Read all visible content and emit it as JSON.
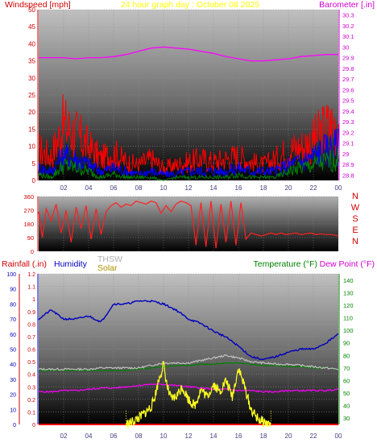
{
  "colors": {
    "windspeed": "#ff0000",
    "barometer": "#ff00ff",
    "title": "#ffff00",
    "humidity": "#0000c0",
    "thsw": "#c0c0c0",
    "solar": "#c0a000",
    "temperature": "#008000",
    "dew_point": "#ff00ff",
    "rainfall": "#ff0000",
    "wind_dir": "#ff2020",
    "axis_red": "#d00000",
    "axis_blue": "#0000c0",
    "axis_green": "#008000",
    "plot_top": "#b8b8b8",
    "plot_bottom": "#000000"
  },
  "title": "24 hour graph day : October 08 2025",
  "chart_data": [
    {
      "type": "line",
      "title": "24 hour graph day : October 08 2025",
      "x_ticks": [
        "02",
        "04",
        "06",
        "08",
        "10",
        "12",
        "14",
        "16",
        "18",
        "20",
        "22",
        "00"
      ],
      "left_label": "Windspeed [mph]",
      "left_ticks": [
        "0",
        "5",
        "10",
        "15",
        "20",
        "25",
        "30",
        "35",
        "40",
        "45",
        "50"
      ],
      "left_range": [
        0,
        50
      ],
      "right_label": "Barometer [.in]",
      "right_ticks": [
        "28.8",
        "28.9",
        "29",
        "29.1",
        "29.2",
        "29.3",
        "29.4",
        "29.5",
        "29.6",
        "29.7",
        "29.8",
        "29.9",
        "30",
        "30.1",
        "30.2",
        "30.3"
      ],
      "right_range": [
        28.75,
        30.35
      ],
      "series": [
        {
          "name": "Barometer",
          "axis": "right",
          "x": [
            0,
            1,
            2,
            3,
            4,
            5,
            6,
            7,
            8,
            9,
            10,
            11,
            12,
            13,
            14,
            15,
            16,
            17,
            18,
            19,
            20,
            21,
            22,
            23,
            24
          ],
          "values": [
            29.9,
            29.9,
            29.9,
            29.89,
            29.9,
            29.9,
            29.91,
            29.93,
            29.96,
            29.99,
            30.0,
            29.99,
            29.98,
            29.96,
            29.94,
            29.91,
            29.89,
            29.87,
            29.87,
            29.88,
            29.89,
            29.91,
            29.92,
            29.93,
            29.93
          ]
        },
        {
          "name": "Wind gust",
          "axis": "left",
          "x": [
            0,
            1,
            2,
            3,
            4,
            5,
            6,
            7,
            8,
            9,
            10,
            11,
            12,
            13,
            14,
            15,
            16,
            17,
            18,
            19,
            20,
            21,
            22,
            23,
            24
          ],
          "values": [
            10,
            8,
            18,
            15,
            11,
            7,
            9,
            6,
            5,
            7,
            4,
            5,
            6,
            7,
            6,
            7,
            8,
            6,
            5,
            7,
            10,
            11,
            13,
            17,
            19
          ]
        },
        {
          "name": "Wind average",
          "axis": "left",
          "x": [
            0,
            1,
            2,
            3,
            4,
            5,
            6,
            7,
            8,
            9,
            10,
            11,
            12,
            13,
            14,
            15,
            16,
            17,
            18,
            19,
            20,
            21,
            22,
            23,
            24
          ],
          "values": [
            4,
            3,
            8,
            7,
            5,
            3,
            4,
            3,
            2,
            3,
            2,
            2,
            3,
            3,
            3,
            3,
            4,
            3,
            3,
            3,
            5,
            6,
            8,
            10,
            11
          ]
        },
        {
          "name": "Wind low",
          "axis": "left",
          "x": [
            0,
            1,
            2,
            3,
            4,
            5,
            6,
            7,
            8,
            9,
            10,
            11,
            12,
            13,
            14,
            15,
            16,
            17,
            18,
            19,
            20,
            21,
            22,
            23,
            24
          ],
          "values": [
            2,
            1,
            5,
            4,
            3,
            1,
            2,
            1,
            1,
            1,
            0,
            1,
            1,
            1,
            1,
            1,
            2,
            1,
            1,
            1,
            3,
            4,
            5,
            6,
            7
          ]
        }
      ]
    },
    {
      "type": "line",
      "x_ticks": [
        "02",
        "04",
        "06",
        "08",
        "10",
        "12",
        "14",
        "16",
        "18",
        "20",
        "22",
        "00"
      ],
      "left_ticks": [
        "0",
        "90",
        "180",
        "270",
        "360"
      ],
      "left_range": [
        0,
        360
      ],
      "right_labels": [
        "N",
        "W",
        "S",
        "E",
        "N"
      ],
      "series": [
        {
          "name": "Wind direction",
          "x": [
            0,
            0.3,
            0.6,
            1,
            1.4,
            1.8,
            2.2,
            2.6,
            3,
            3.4,
            3.8,
            4.2,
            4.6,
            5,
            5.4,
            5.8,
            6.2,
            6.6,
            7,
            7.4,
            7.8,
            8.2,
            8.6,
            9,
            9.4,
            9.8,
            10.2,
            10.6,
            11,
            11.4,
            11.8,
            12.2,
            12.6,
            13,
            13.4,
            13.8,
            14.2,
            14.6,
            15,
            15.4,
            15.8,
            16.2,
            16.6,
            17,
            17.4,
            17.8,
            18.2,
            18.6,
            19,
            19.4,
            19.8,
            20.2,
            20.6,
            21,
            21.4,
            21.8,
            22.2,
            22.6,
            23,
            23.4,
            23.8,
            24
          ],
          "values": [
            260,
            90,
            280,
            200,
            310,
            120,
            270,
            60,
            290,
            150,
            300,
            80,
            280,
            110,
            260,
            300,
            320,
            290,
            310,
            300,
            330,
            320,
            310,
            330,
            320,
            250,
            300,
            260,
            310,
            330,
            320,
            300,
            40,
            320,
            30,
            330,
            20,
            310,
            60,
            330,
            40,
            320,
            80,
            120,
            110,
            100,
            110,
            120,
            110,
            120,
            110,
            115,
            120,
            110,
            115,
            120,
            110,
            115,
            110,
            110,
            105,
            100
          ]
        }
      ]
    },
    {
      "type": "line",
      "x_ticks": [
        "02",
        "04",
        "06",
        "08",
        "10",
        "12",
        "14",
        "16",
        "18",
        "20",
        "22",
        "00"
      ],
      "left_outer_label": "Rainfall (.in)",
      "left_outer_ticks": [
        "0",
        "0.1",
        "0.2",
        "0.3",
        "0.4",
        "0.5",
        "0.6",
        "0.7",
        "0.8",
        "0.9",
        "1",
        "1.1",
        "1.2"
      ],
      "left_outer_range": [
        0,
        1.2
      ],
      "left_inner_label": "Humidity",
      "left_inner_ticks": [
        "0",
        "10",
        "20",
        "30",
        "40",
        "50",
        "60",
        "70",
        "80",
        "90",
        "100"
      ],
      "left_inner_range": [
        0,
        100
      ],
      "right_label_1": "Temperature (°F)",
      "right_label_2": "Dew Point (°F)",
      "right_ticks": [
        "30",
        "40",
        "50",
        "60",
        "70",
        "80",
        "90",
        "100",
        "110",
        "120",
        "130",
        "140"
      ],
      "right_range": [
        25,
        145
      ],
      "legend_thsw": "THSW",
      "legend_solar": "Solar",
      "series": [
        {
          "name": "Humidity",
          "axis": "left_inner",
          "x": [
            0,
            1,
            2,
            3,
            4,
            5,
            6,
            7,
            8,
            9,
            10,
            11,
            12,
            13,
            14,
            15,
            16,
            17,
            18,
            19,
            20,
            21,
            22,
            23,
            24
          ],
          "values": [
            70,
            76,
            70,
            70,
            72,
            68,
            80,
            80,
            82,
            82,
            80,
            76,
            70,
            67,
            62,
            58,
            52,
            45,
            43,
            45,
            48,
            50,
            50,
            54,
            60
          ]
        },
        {
          "name": "THSW",
          "axis": "right",
          "x": [
            0,
            1,
            2,
            3,
            4,
            5,
            6,
            7,
            8,
            9,
            10,
            11,
            12,
            13,
            14,
            15,
            16,
            17,
            18,
            19,
            20,
            21,
            22,
            23,
            24
          ],
          "values": [
            69,
            69,
            69,
            69,
            69,
            70,
            70,
            70,
            70,
            72,
            74,
            74,
            74,
            76,
            78,
            80,
            78,
            75,
            74,
            73,
            73,
            72,
            71,
            70,
            69
          ]
        },
        {
          "name": "Temperature",
          "axis": "right",
          "x": [
            0,
            1,
            2,
            3,
            4,
            5,
            6,
            7,
            8,
            9,
            10,
            11,
            12,
            13,
            14,
            15,
            16,
            17,
            18,
            19,
            20,
            21,
            22,
            23,
            24
          ],
          "values": [
            68,
            68,
            68,
            68,
            68,
            68,
            68,
            68,
            69,
            70,
            71,
            72,
            72,
            73,
            73,
            74,
            74,
            73,
            72,
            72,
            71,
            71,
            70,
            70,
            69
          ]
        },
        {
          "name": "Dew Point",
          "axis": "right",
          "x": [
            0,
            1,
            2,
            3,
            4,
            5,
            6,
            7,
            8,
            9,
            10,
            11,
            12,
            13,
            14,
            15,
            16,
            17,
            18,
            19,
            20,
            21,
            22,
            23,
            24
          ],
          "values": [
            51,
            51,
            52,
            52,
            53,
            54,
            54,
            55,
            56,
            57,
            57,
            56,
            55,
            54,
            53,
            53,
            52,
            52,
            51,
            51,
            52,
            52,
            52,
            52,
            53
          ]
        },
        {
          "name": "Solar",
          "axis": "left_outer",
          "x": [
            7,
            7.5,
            8,
            8.5,
            9,
            9.3,
            9.6,
            10,
            10.3,
            10.6,
            11,
            11.5,
            12,
            12.5,
            13,
            13.5,
            14,
            14.5,
            15,
            15.5,
            16,
            16.5,
            17,
            17.5,
            18,
            18.3,
            18.6
          ],
          "values": [
            0,
            0.02,
            0.05,
            0.09,
            0.14,
            0.22,
            0.35,
            0.48,
            0.3,
            0.2,
            0.22,
            0.3,
            0.2,
            0.15,
            0.28,
            0.22,
            0.32,
            0.26,
            0.35,
            0.22,
            0.45,
            0.3,
            0.12,
            0.05,
            0.02,
            0.01,
            0
          ]
        },
        {
          "name": "Rainfall",
          "axis": "left_outer",
          "x": [
            0,
            24
          ],
          "values": [
            0,
            0
          ]
        }
      ]
    }
  ]
}
